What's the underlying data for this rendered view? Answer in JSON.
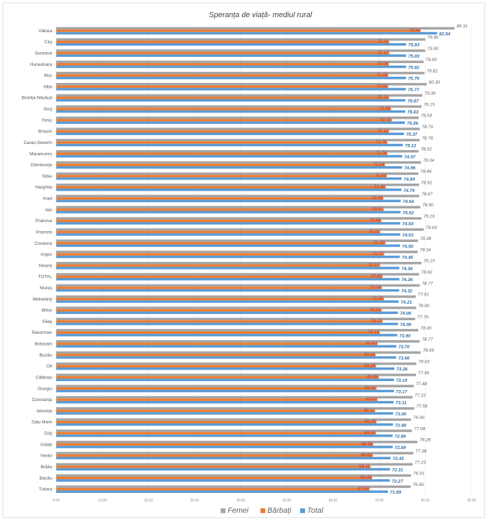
{
  "chart_data": {
    "type": "hbar",
    "title": "Speranța de viață- mediul rural",
    "categories": [
      "Vâlcea",
      "Cluj",
      "Suceava",
      "Hunedoara",
      "Ilfov",
      "Alba",
      "Bistrița-Năsăud",
      "Gorj",
      "Timiș",
      "Brașov",
      "Caraș-Severin",
      "Maramureș",
      "Dâmbovița",
      "Sibiu",
      "Harghita",
      "Arad",
      "Iași",
      "Prahova",
      "Vrancea",
      "Covasna",
      "Argeș",
      "Neamț",
      "TOTAL",
      "Mureș",
      "Mehedinți",
      "Bihor",
      "Sălaj",
      "Teleorman",
      "Botoșani",
      "Buzău",
      "Olt",
      "Călărași",
      "Giurgiu",
      "Constanța",
      "Ialomița",
      "Satu Mare",
      "Dolj",
      "Galați",
      "Vaslui",
      "Brăila",
      "Bacău",
      "Tulcea"
    ],
    "series": [
      {
        "name": "Femei",
        "color": "#a5a5a5",
        "values": [
          86.31,
          79.96,
          79.95,
          79.6,
          79.81,
          80.3,
          79.36,
          79.15,
          78.54,
          78.79,
          78.78,
          78.52,
          79.04,
          78.46,
          78.61,
          78.67,
          78.9,
          79.16,
          79.63,
          78.38,
          78.34,
          79.15,
          78.62,
          78.77,
          77.91,
          78,
          77.79,
          78.45,
          78.77,
          78.99,
          78.03,
          77.96,
          77.48,
          77.22,
          77.58,
          76.9,
          77.08,
          78.28,
          77.38,
          77.23,
          76.91,
          76.8
        ],
        "value_labels": [
          "86.31",
          "79.96",
          "79.95",
          "79.60",
          "79.81",
          "80.30",
          "79.36",
          "79.15",
          "78.54",
          "78.79",
          "78.78",
          "78.52",
          "79.04",
          "78.46",
          "78.61",
          "78.67",
          "78.90",
          "79.16",
          "79.63",
          "78.38",
          "78.34",
          "79.15",
          "78.62",
          "78.77",
          "77.91",
          "78.00",
          "77.79",
          "78.45",
          "78.77",
          "78.99",
          "78.03",
          "77.96",
          "77.48",
          "77.22",
          "77.58",
          "76.90",
          "77.08",
          "78.28",
          "77.38",
          "77.23",
          "76.91",
          "76.80"
        ]
      },
      {
        "name": "Bărbați",
        "color": "#ed7d31",
        "values": [
          78.96,
          72.15,
          72.17,
          72.06,
          71.95,
          71.92,
          72.13,
          72.56,
          72.72,
          72.12,
          71.75,
          71.76,
          71.24,
          71.63,
          71.41,
          70.9,
          70.97,
          70.46,
          70.21,
          71.32,
          71.07,
          70.17,
          70.69,
          70.56,
          71.02,
          70.51,
          70.72,
          70.12,
          69.63,
          69.21,
          69.29,
          69.89,
          69.41,
          69.62,
          69.11,
          69.39,
          69.28,
          68.68,
          68.6,
          68.11,
          68.46,
          67.9
        ],
        "value_labels": [
          "78.96",
          "72.15",
          "72.17",
          "72.06",
          "71.95",
          "71.92",
          "72.13",
          "72.56",
          "72.72",
          "72.12",
          "71.75",
          "71.76",
          "71.24",
          "71.63",
          "71.41",
          "70.90",
          "70.97",
          "70.46",
          "70.21",
          "71.32",
          "71.07",
          "70.17",
          "70.69",
          "70.56",
          "71.02",
          "70.51",
          "70.72",
          "70.12",
          "69.63",
          "69.21",
          "69.29",
          "69.89",
          "69.41",
          "69.62",
          "69.11",
          "69.39",
          "69.28",
          "68.68",
          "68.60",
          "68.11",
          "68.46",
          "67.90"
        ]
      },
      {
        "name": "Total",
        "color": "#5b9bd5",
        "values": [
          82.54,
          75.83,
          75.83,
          75.82,
          75.79,
          75.77,
          75.67,
          75.63,
          75.56,
          75.37,
          75.12,
          74.97,
          74.96,
          74.84,
          74.79,
          74.64,
          74.62,
          74.54,
          74.53,
          74.5,
          74.45,
          74.36,
          74.36,
          74.32,
          74.21,
          74.06,
          74.06,
          73.9,
          73.7,
          73.66,
          73.26,
          73.19,
          73.17,
          73.11,
          73,
          72.98,
          72.89,
          72.89,
          72.45,
          72.31,
          72.27,
          71.89
        ],
        "value_labels": [
          "82.54",
          "75.83",
          "75.83",
          "75.82",
          "75.79",
          "75.77",
          "75.67",
          "75.63",
          "75.56",
          "75.37",
          "75.12",
          "74.97",
          "74.96",
          "74.84",
          "74.79",
          "74.64",
          "74.62",
          "74.54",
          "74.53",
          "74.50",
          "74.45",
          "74.36",
          "74.36",
          "74.32",
          "74.21",
          "74.06",
          "74.06",
          "73.90",
          "73.70",
          "73.66",
          "73.26",
          "73.19",
          "73.17",
          "73.11",
          "73.00",
          "72.98",
          "72.89",
          "72.89",
          "72.45",
          "72.31",
          "72.27",
          "71.89"
        ]
      }
    ],
    "xlim": [
      0,
      90
    ],
    "xticks": [
      {
        "value": 0,
        "label": "0.00"
      },
      {
        "value": 10,
        "label": "10.00"
      },
      {
        "value": 20,
        "label": "20.00"
      },
      {
        "value": 30,
        "label": "30.00"
      },
      {
        "value": 40,
        "label": "40.00"
      },
      {
        "value": 50,
        "label": "50.00"
      },
      {
        "value": 60,
        "label": "60.00"
      },
      {
        "value": 70,
        "label": "70.00"
      },
      {
        "value": 80,
        "label": "80.00"
      },
      {
        "value": 90,
        "label": "90.00"
      }
    ],
    "grid": true,
    "legend": "bottom"
  }
}
